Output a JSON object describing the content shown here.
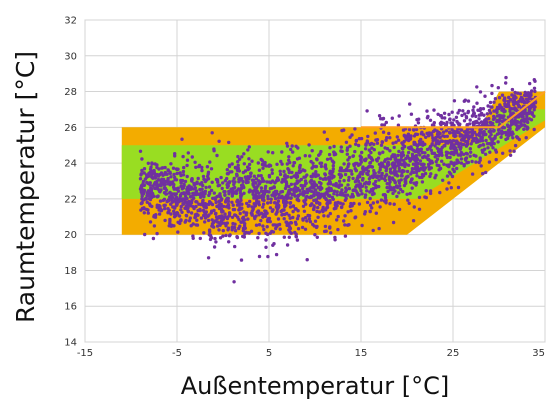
{
  "chart_data": {
    "type": "scatter",
    "title": "",
    "xlabel": "Außentemperatur [°C]",
    "ylabel": "Raumtemperatur [°C]",
    "xlim": [
      -15,
      35
    ],
    "ylim": [
      14,
      32
    ],
    "xticks": [
      "-15",
      "-5",
      "5",
      "15",
      "25",
      "35"
    ],
    "yticks": [
      "14",
      "16",
      "18",
      "20",
      "22",
      "24",
      "26",
      "28",
      "30",
      "32"
    ],
    "xtick_values": [
      -15,
      -5,
      5,
      15,
      25,
      35
    ],
    "ytick_values": [
      14,
      16,
      18,
      20,
      22,
      24,
      26,
      28,
      30,
      32
    ],
    "grid": true,
    "comfort_bands": [
      {
        "name": "outer",
        "color": "#f3ac00",
        "polygon": [
          [
            -11,
            20
          ],
          [
            20,
            20
          ],
          [
            35,
            26
          ],
          [
            35,
            28
          ],
          [
            30,
            28
          ],
          [
            28,
            26
          ],
          [
            -11,
            26
          ]
        ]
      },
      {
        "name": "inner",
        "color": "#99dd22",
        "polygon": [
          [
            -11,
            22
          ],
          [
            21,
            22
          ],
          [
            35,
            26.4
          ],
          [
            35,
            27
          ],
          [
            30,
            27
          ],
          [
            27,
            25
          ],
          [
            -11,
            25
          ]
        ]
      }
    ],
    "limit_line": {
      "color": "#ffa020",
      "x": [
        15,
        30,
        35
      ],
      "y": [
        26,
        26,
        28
      ]
    },
    "scatter_color": "#7030a0",
    "scatter_envelope": {
      "x": [
        -9,
        -5,
        0,
        5,
        10,
        15,
        20,
        25,
        30,
        34
      ],
      "y_center": [
        22.7,
        22.2,
        21.7,
        21.9,
        22.4,
        23.2,
        24.2,
        25.1,
        26.2,
        27.3
      ],
      "y_spread": [
        1.0,
        1.4,
        1.8,
        1.8,
        1.7,
        1.6,
        1.5,
        1.4,
        1.2,
        0.9
      ]
    }
  }
}
